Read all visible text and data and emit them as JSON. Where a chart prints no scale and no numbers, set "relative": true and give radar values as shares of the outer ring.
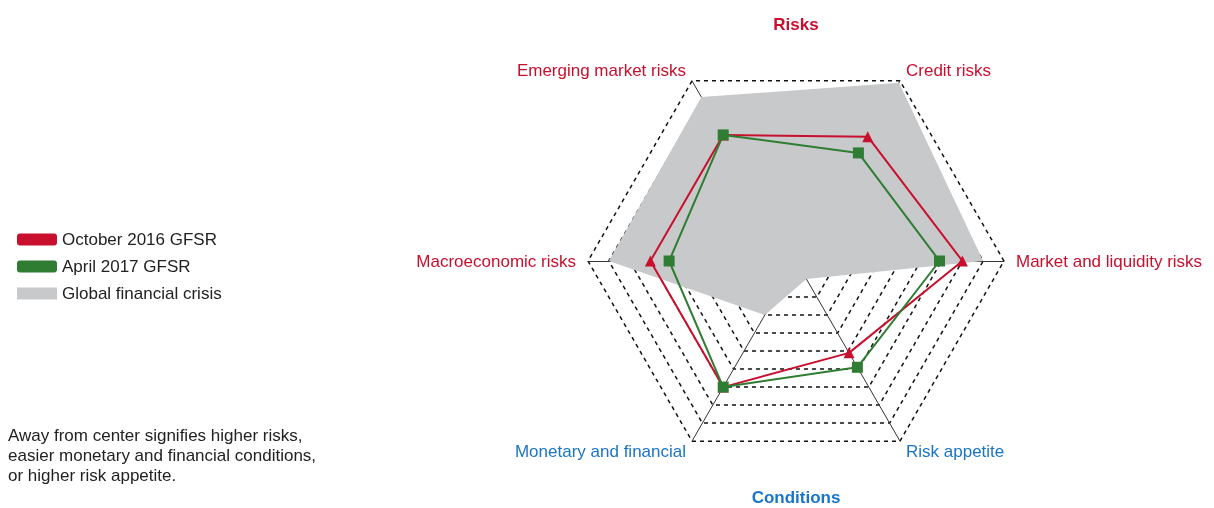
{
  "chart_data": {
    "type": "radar",
    "relative": true,
    "categories": [
      "Emerging market risks",
      "Credit risks",
      "Market and liquidity risks",
      "Risk appetite",
      "Monetary and financial",
      "Macroeconomic risks"
    ],
    "series": [
      {
        "name": "October 2016 GFSR",
        "color": "#c8102e",
        "marker": "triangle",
        "values": [
          0.7,
          0.69,
          0.8,
          0.51,
          0.7,
          0.7
        ]
      },
      {
        "name": "April 2017 GFSR",
        "color": "#2e7d32",
        "marker": "square",
        "values": [
          0.7,
          0.6,
          0.69,
          0.59,
          0.7,
          0.61
        ]
      },
      {
        "name": "Global financial crisis",
        "type": "area",
        "color": "#c8c9cb",
        "values": [
          0.91,
          0.99,
          0.9,
          0.1,
          0.3,
          0.9
        ]
      }
    ],
    "annotations": [
      "Risks",
      "Conditions",
      "Away from center signifies higher risks,\neasier monetary and financial conditions,\nor higher risk appetite."
    ],
    "legend": "left"
  }
}
